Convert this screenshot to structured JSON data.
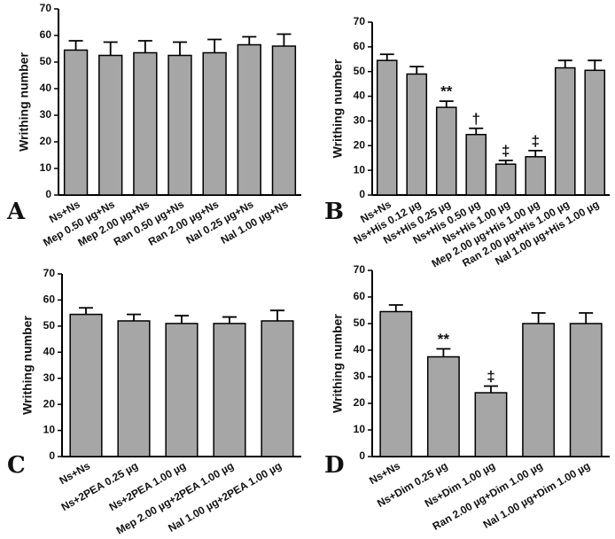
{
  "chart_data": [
    {
      "type": "bar",
      "label": "A",
      "ylabel": "Writhing number",
      "categories": [
        "Ns+Ns",
        "Mep 0.50 µg+Ns",
        "Mep 2.00 µg+Ns",
        "Ran 0.50 µg+Ns",
        "Ran 2.00 µg+Ns",
        "Nal 0.25 µg+Ns",
        "Nal 1.00 µg+Ns"
      ],
      "values": [
        54.5,
        52.5,
        53.5,
        52.5,
        53.5,
        56.5,
        56
      ],
      "errors": [
        3.5,
        5,
        4.5,
        5,
        5,
        3,
        4.5
      ],
      "color": "#a6a6a6",
      "ylim": [
        0,
        70
      ],
      "yticks": [
        0,
        10,
        20,
        30,
        40,
        50,
        60,
        70
      ]
    },
    {
      "type": "bar",
      "label": "B",
      "ylabel": "Writhing number",
      "categories": [
        "Ns+Ns",
        "Ns+His 0.12 µg",
        "Ns+His 0.25 µg",
        "Ns+His 0.50 µg",
        "Ns+His 1.00 µg",
        "Mep 2.00 µg+His 1.00 µg",
        "Ran 2.00 µg+His 1.00 µg",
        "Nal 1.00 µg+His 1.00 µg"
      ],
      "values": [
        54.5,
        49,
        35.5,
        24.5,
        12.5,
        15.5,
        51.5,
        50.5
      ],
      "errors": [
        2.5,
        3,
        2.5,
        2.5,
        1.5,
        2.5,
        3,
        4
      ],
      "annotations": [
        null,
        null,
        "**",
        "†",
        "‡",
        "‡",
        null,
        null
      ],
      "color": "#a6a6a6",
      "ylim": [
        0,
        70
      ],
      "yticks": [
        0,
        10,
        20,
        30,
        40,
        50,
        60,
        70
      ]
    },
    {
      "type": "bar",
      "label": "C",
      "ylabel": "Writhing number",
      "categories": [
        "Ns+Ns",
        "Ns+2PEA 0.25 µg",
        "Ns+2PEA 1.00 µg",
        "Mep 2.00 µg+2PEA 1.00 µg",
        "Nal 1.00 µg+2PEA 1.00 µg"
      ],
      "values": [
        54.5,
        52,
        51,
        51,
        52
      ],
      "errors": [
        2.5,
        2.5,
        3,
        2.5,
        4
      ],
      "color": "#a6a6a6",
      "ylim": [
        0,
        70
      ],
      "yticks": [
        0,
        10,
        20,
        30,
        40,
        50,
        60,
        70
      ]
    },
    {
      "type": "bar",
      "label": "D",
      "ylabel": "Writhing number",
      "categories": [
        "Ns+Ns",
        "Ns+Dim 0.25 µg",
        "Ns+Dim 1.00 µg",
        "Ran 2.00 µg+Dim 1.00 µg",
        "Nal 1.00 µg+Dim 1.00 µg"
      ],
      "values": [
        54.5,
        37.5,
        24,
        50,
        50
      ],
      "errors": [
        2.5,
        3,
        2.5,
        4,
        4
      ],
      "annotations": [
        null,
        "**",
        "‡",
        null,
        null
      ],
      "color": "#a6a6a6",
      "ylim": [
        0,
        70
      ],
      "yticks": [
        0,
        10,
        20,
        30,
        40,
        50,
        60,
        70
      ]
    }
  ]
}
